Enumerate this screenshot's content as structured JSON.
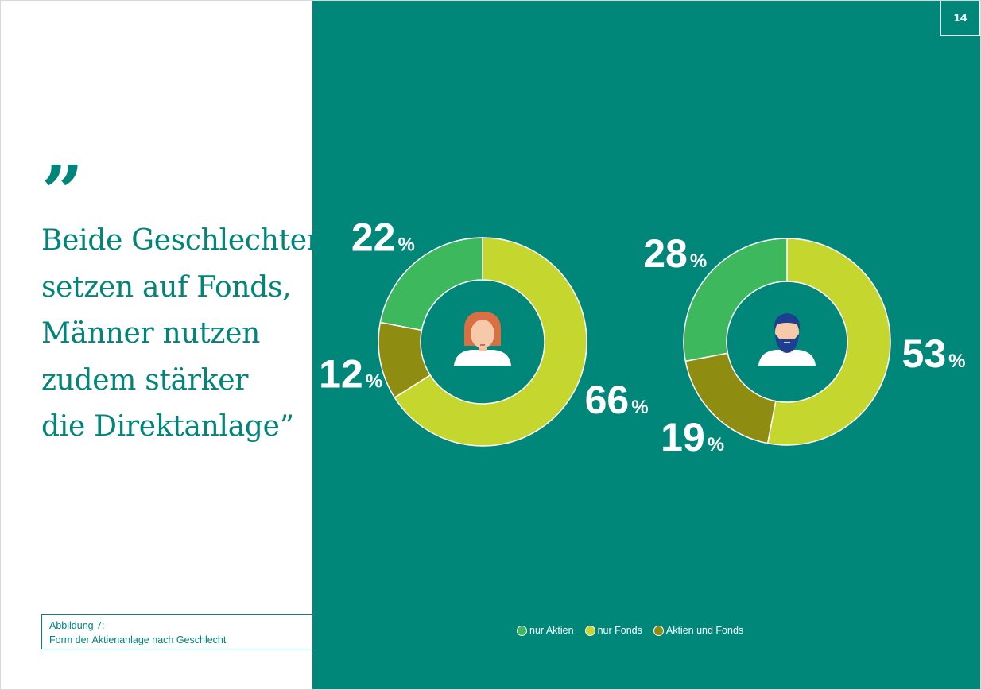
{
  "page_number": "14",
  "quote": {
    "mark": "”",
    "lines": [
      "Beide Geschlechter",
      "setzen auf Fonds,",
      "Männer nutzen",
      "zudem stärker",
      "die Direktanlage”"
    ]
  },
  "caption": {
    "label": "Abbildung 7:",
    "text": "Form der Aktienanlage nach Geschlecht"
  },
  "colors": {
    "background": "#00877a",
    "headline": "#00857a",
    "nur_aktien": "#3db85c",
    "nur_fonds": "#c5d72f",
    "aktien_und_fonds": "#8f8c12"
  },
  "legend": [
    {
      "label": "nur Aktien",
      "color": "#3db85c"
    },
    {
      "label": "nur Fonds",
      "color": "#c5d72f"
    },
    {
      "label": "Aktien und Fonds",
      "color": "#8f8c12"
    }
  ],
  "chart_data": [
    {
      "type": "pie",
      "style": "donut",
      "icon": "woman-avatar-icon",
      "categories": [
        "nur Aktien",
        "nur Fonds",
        "Aktien und Fonds"
      ],
      "values": [
        22,
        66,
        12
      ],
      "value_labels": [
        "22",
        "66",
        "12"
      ],
      "unit": "%"
    },
    {
      "type": "pie",
      "style": "donut",
      "icon": "man-avatar-icon",
      "categories": [
        "nur Aktien",
        "nur Fonds",
        "Aktien und Fonds"
      ],
      "values": [
        28,
        53,
        19
      ],
      "value_labels": [
        "28",
        "53",
        "19"
      ],
      "unit": "%"
    }
  ]
}
